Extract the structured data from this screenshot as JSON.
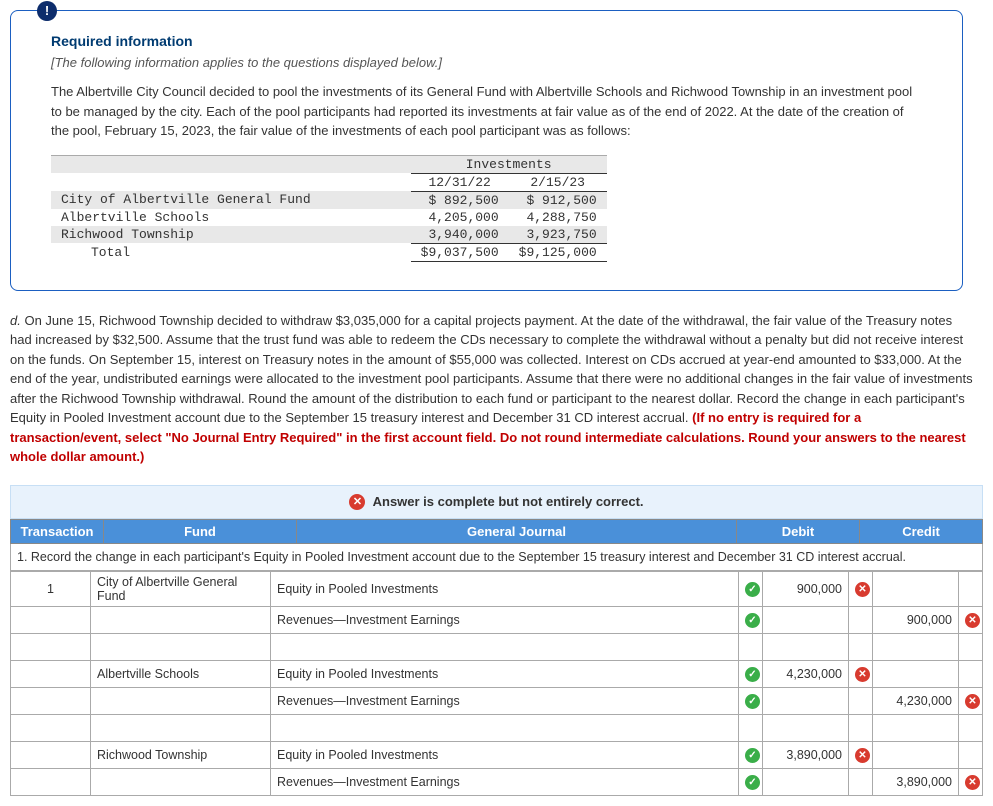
{
  "card": {
    "badge": "!",
    "required_title": "Required information",
    "intro_italic": "[The following information applies to the questions displayed below.]",
    "body_text": "The Albertville City Council decided to pool the investments of its General Fund with Albertville Schools and Richwood Township in an investment pool to be managed by the city. Each of the pool participants had reported its investments at fair value as of the end of 2022. At the date of the creation of the pool, February 15, 2023, the fair value of the investments of each pool participant was as follows:"
  },
  "inv_table": {
    "header": "Investments",
    "col1": "12/31/22",
    "col2": "2/15/23",
    "rows": [
      {
        "label": "City of Albertville General Fund",
        "v1": "$  892,500",
        "v2": "$  912,500"
      },
      {
        "label": "Albertville Schools",
        "v1": "4,205,000",
        "v2": "4,288,750"
      },
      {
        "label": "Richwood Township",
        "v1": "3,940,000",
        "v2": "3,923,750"
      }
    ],
    "total_label": "Total",
    "total_v1": "$9,037,500",
    "total_v2": "$9,125,000"
  },
  "question": {
    "prefix": "d. ",
    "text": "On June 15, Richwood Township decided to withdraw $3,035,000 for a capital projects payment. At the date of the withdrawal, the fair value of the Treasury notes had increased by $32,500. Assume that the trust fund was able to redeem the CDs necessary to complete the withdrawal without a penalty but did not receive interest on the funds. On September 15, interest on Treasury notes in the amount of $55,000 was collected. Interest on CDs accrued at year-end amounted to $33,000. At the end of the year, undistributed earnings were allocated to the investment pool participants. Assume that there were no additional changes in the fair value of investments after the Richwood Township withdrawal. Round the amount of the distribution to each fund or participant to the nearest dollar. Record the change in each participant's Equity in Pooled Investment account due to the September 15 treasury interest and December 31 CD interest accrual. ",
    "red": "(If no entry is required for a transaction/event, select \"No Journal Entry Required\" in the first account field. Do not round intermediate calculations. Round your answers to the nearest whole dollar amount.)"
  },
  "status_text": "Answer is complete but not entirely correct.",
  "journal": {
    "headers": {
      "trans": "Transaction",
      "fund": "Fund",
      "gj": "General Journal",
      "debit": "Debit",
      "credit": "Credit"
    },
    "instruction": "1. Record the change in each participant's Equity in Pooled Investment account due to the September 15 treasury interest and December 31 CD interest accrual.",
    "groups": [
      {
        "num": "1",
        "fund": "City of Albertville General Fund",
        "lines": [
          {
            "acct": "Equity in Pooled Investments",
            "acct_ok": true,
            "debit": "900,000",
            "debit_bad": true,
            "credit": "",
            "credit_bad": false
          },
          {
            "acct": "Revenues—Investment Earnings",
            "acct_ok": true,
            "debit": "",
            "debit_bad": false,
            "credit": "900,000",
            "credit_bad": true
          }
        ]
      },
      {
        "num": "",
        "fund": "Albertville Schools",
        "lines": [
          {
            "acct": "Equity in Pooled Investments",
            "acct_ok": true,
            "debit": "4,230,000",
            "debit_bad": true,
            "credit": "",
            "credit_bad": false
          },
          {
            "acct": "Revenues—Investment Earnings",
            "acct_ok": true,
            "debit": "",
            "debit_bad": false,
            "credit": "4,230,000",
            "credit_bad": true
          }
        ]
      },
      {
        "num": "",
        "fund": "Richwood Township",
        "lines": [
          {
            "acct": "Equity in Pooled Investments",
            "acct_ok": true,
            "debit": "3,890,000",
            "debit_bad": true,
            "credit": "",
            "credit_bad": false
          },
          {
            "acct": "Revenues—Investment Earnings",
            "acct_ok": true,
            "debit": "",
            "debit_bad": false,
            "credit": "3,890,000",
            "credit_bad": true
          }
        ]
      }
    ]
  }
}
